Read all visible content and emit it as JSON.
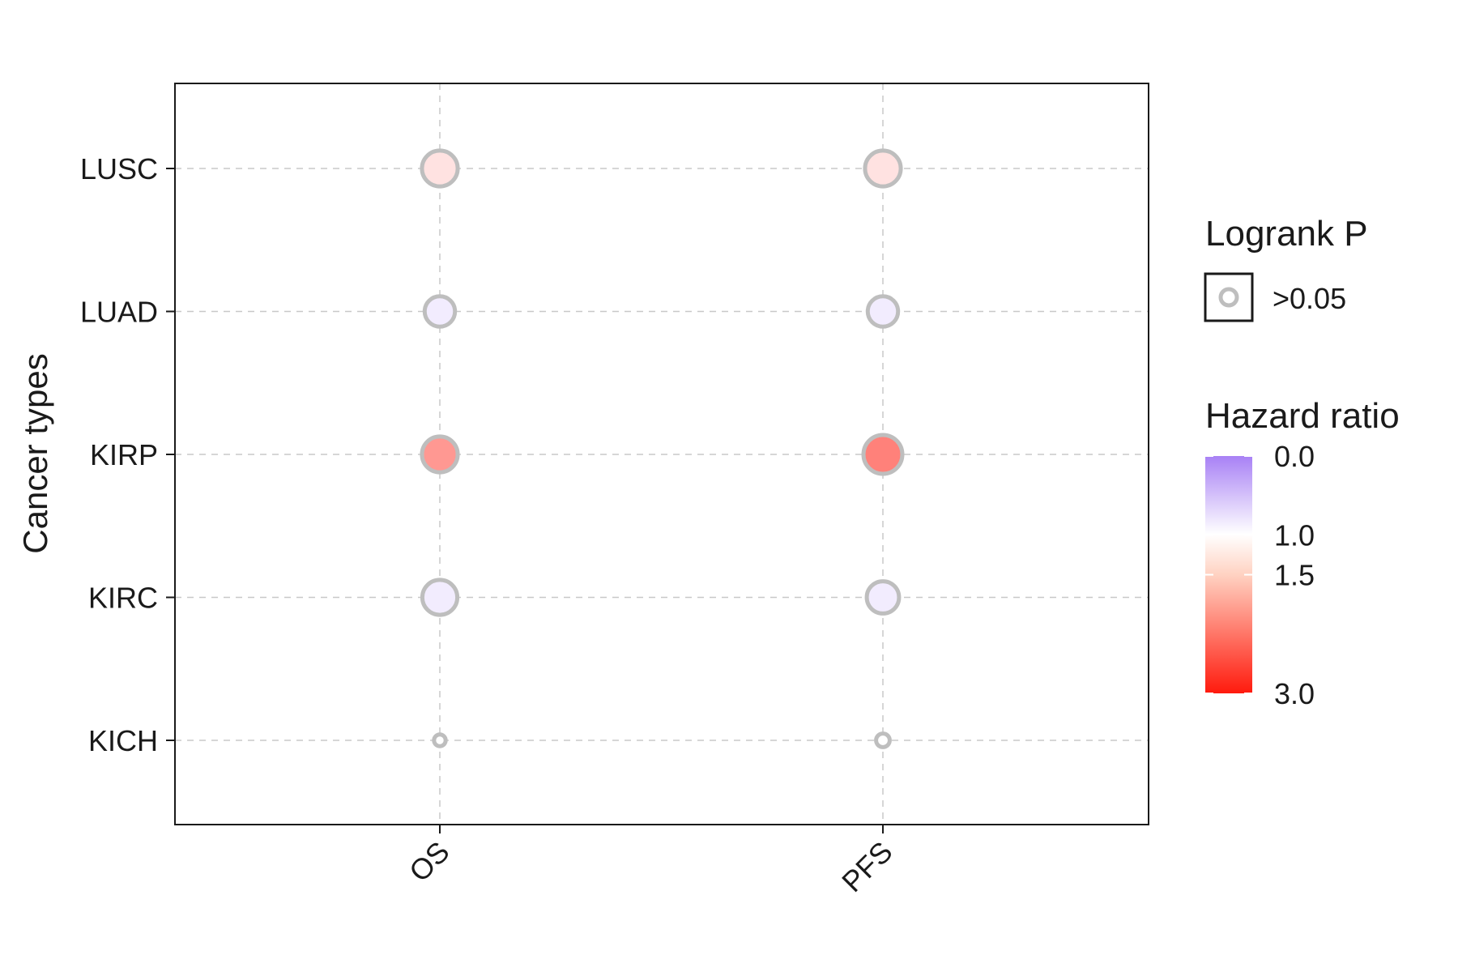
{
  "chart_data": {
    "type": "scatter",
    "title": "",
    "xlabel": "",
    "ylabel": "Cancer types",
    "x_categories": [
      "OS",
      "PFS"
    ],
    "y_categories": [
      "KICH",
      "KIRC",
      "KIRP",
      "LUAD",
      "LUSC"
    ],
    "points": [
      {
        "x": "OS",
        "y": "LUSC",
        "hazard_ratio": 1.25,
        "size": 0.92
      },
      {
        "x": "PFS",
        "y": "LUSC",
        "hazard_ratio": 1.25,
        "size": 0.92
      },
      {
        "x": "OS",
        "y": "LUAD",
        "hazard_ratio": 0.85,
        "size": 0.78
      },
      {
        "x": "PFS",
        "y": "LUAD",
        "hazard_ratio": 0.85,
        "size": 0.78
      },
      {
        "x": "OS",
        "y": "KIRP",
        "hazard_ratio": 1.9,
        "size": 0.92
      },
      {
        "x": "PFS",
        "y": "KIRP",
        "hazard_ratio": 2.1,
        "size": 1.0
      },
      {
        "x": "OS",
        "y": "KIRC",
        "hazard_ratio": 0.85,
        "size": 0.9
      },
      {
        "x": "PFS",
        "y": "KIRC",
        "hazard_ratio": 0.85,
        "size": 0.83
      },
      {
        "x": "OS",
        "y": "KICH",
        "hazard_ratio": 1.0,
        "size": 0.3
      },
      {
        "x": "PFS",
        "y": "KICH",
        "hazard_ratio": 1.0,
        "size": 0.35
      }
    ],
    "grid": true,
    "legend": {
      "placement": "right",
      "logrank": {
        "title": "Logrank P",
        "entries": [
          ">0.05"
        ]
      },
      "hazard": {
        "title": "Hazard ratio",
        "breaks": [
          "0.0",
          "1.0",
          "1.5",
          "3.0"
        ],
        "break_values": [
          0.0,
          1.0,
          1.5,
          3.0
        ]
      }
    },
    "colors": {
      "low": "#a881f5",
      "mid": "#ffffff",
      "high": "#ff1a0d",
      "point_outline": "#bebebe",
      "grid": "#c8c8c8",
      "axis": "#1a1a1a"
    }
  }
}
